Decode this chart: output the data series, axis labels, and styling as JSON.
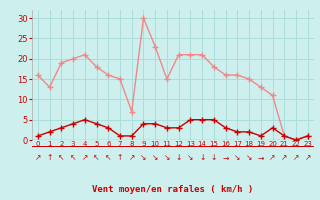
{
  "x": [
    0,
    1,
    2,
    3,
    4,
    5,
    6,
    7,
    8,
    9,
    10,
    11,
    12,
    13,
    14,
    15,
    16,
    17,
    18,
    19,
    20,
    21,
    22,
    23
  ],
  "wind_avg": [
    1,
    2,
    3,
    4,
    5,
    4,
    3,
    1,
    1,
    4,
    4,
    3,
    3,
    5,
    5,
    5,
    3,
    2,
    2,
    1,
    3,
    1,
    0,
    1
  ],
  "wind_gust": [
    16,
    13,
    19,
    20,
    21,
    18,
    16,
    15,
    7,
    30,
    23,
    15,
    21,
    21,
    21,
    18,
    16,
    16,
    15,
    13,
    11,
    1,
    0,
    1
  ],
  "bg_color": "#cdf0ee",
  "grid_color": "#aaddda",
  "avg_color": "#cc0000",
  "gust_color": "#f08888",
  "xlabel": "Vent moyen/en rafales ( km/h )",
  "xlabel_color": "#cc0000",
  "yticks": [
    0,
    5,
    10,
    15,
    20,
    25,
    30
  ],
  "ylim": [
    0,
    32
  ],
  "xlim": [
    -0.5,
    23.5
  ],
  "arrow_symbols": [
    "↗",
    "↑",
    "↖",
    "↖",
    "↗",
    "↖",
    "↖",
    "↑",
    "↗",
    "↘",
    "↘",
    "↘",
    "↓",
    "↘",
    "↓",
    "↓",
    "→",
    "↘",
    "↘",
    "→",
    "↗",
    "↗",
    "↗",
    "↗"
  ]
}
